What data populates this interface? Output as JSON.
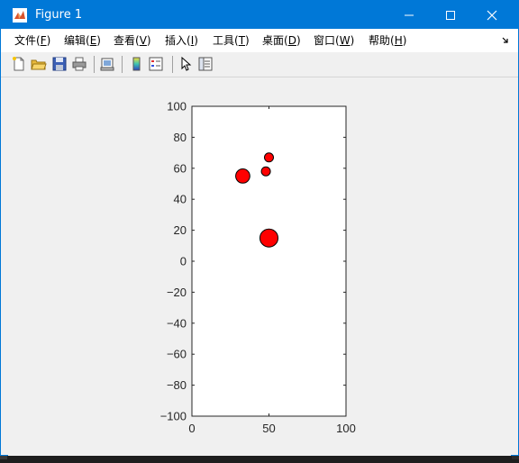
{
  "window": {
    "title": "Figure 1"
  },
  "menu": [
    {
      "label": "文件(",
      "acc": "F",
      "tail": ")"
    },
    {
      "label": "编辑(",
      "acc": "E",
      "tail": ")"
    },
    {
      "label": "查看(",
      "acc": "V",
      "tail": ")"
    },
    {
      "label": "插入(",
      "acc": "I",
      "tail": ")"
    },
    {
      "label": "工具(",
      "acc": "T",
      "tail": ")"
    },
    {
      "label": "桌面(",
      "acc": "D",
      "tail": ")"
    },
    {
      "label": "窗口(",
      "acc": "W",
      "tail": ")"
    },
    {
      "label": "帮助(",
      "acc": "H",
      "tail": ")"
    }
  ],
  "toolbar_icons": [
    "new-figure-icon",
    "open-file-icon",
    "save-icon",
    "print-icon",
    "link-plot-icon",
    "colorbar-icon",
    "legend-icon",
    "pointer-icon",
    "property-inspector-icon"
  ],
  "colors": {
    "titlebar": "#0078d7",
    "marker_fill": "#ff0000",
    "marker_edge": "#000000"
  },
  "chart_data": {
    "type": "scatter",
    "title": "",
    "xlabel": "",
    "ylabel": "",
    "xlim": [
      0,
      100
    ],
    "ylim": [
      -100,
      100
    ],
    "xticks": [
      0,
      50,
      100
    ],
    "yticks": [
      -100,
      -80,
      -60,
      -40,
      -20,
      0,
      20,
      40,
      60,
      80,
      100
    ],
    "grid": false,
    "points": [
      {
        "x": 33,
        "y": 55,
        "r": 5.5
      },
      {
        "x": 50,
        "y": 67,
        "r": 3.5
      },
      {
        "x": 48,
        "y": 58,
        "r": 3.5
      },
      {
        "x": 50,
        "y": 15,
        "r": 7
      }
    ]
  }
}
